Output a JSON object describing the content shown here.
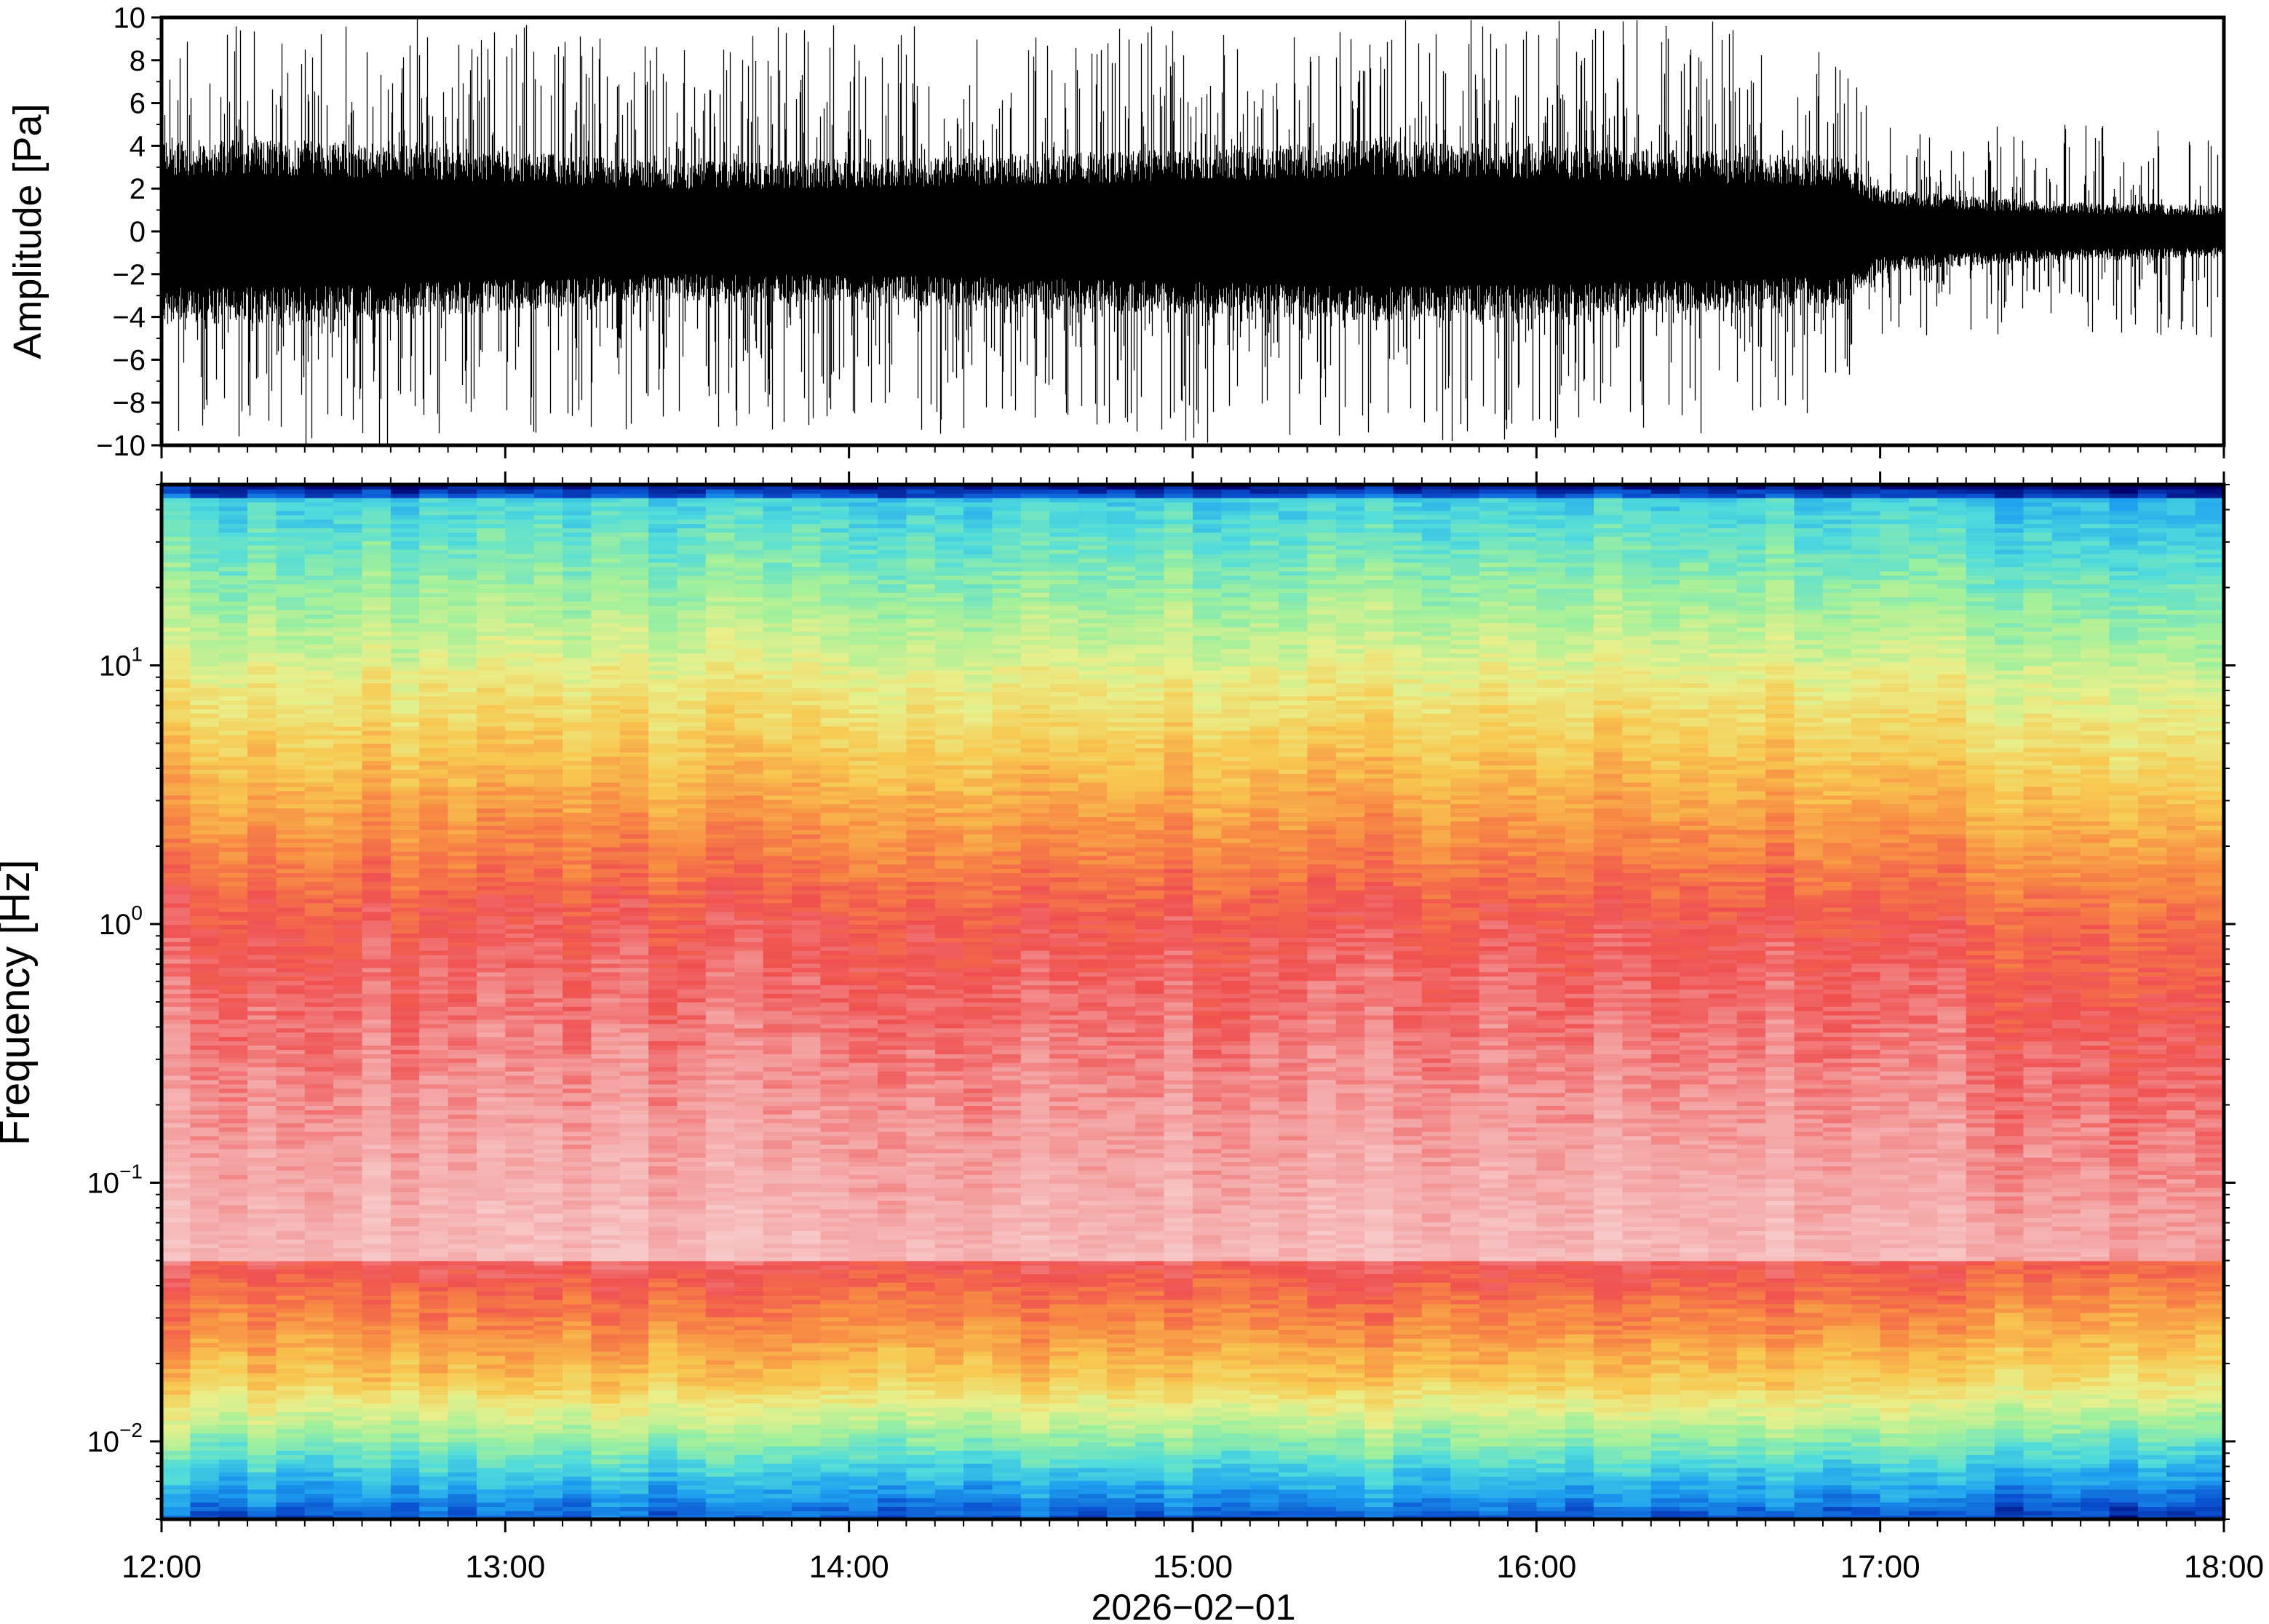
{
  "chart_data": [
    {
      "type": "line",
      "ylabel": "Amplitude [Pa]",
      "ylim": [
        -10,
        10
      ],
      "yticks": [
        -10,
        -8,
        -6,
        -4,
        -2,
        0,
        2,
        4,
        6,
        8,
        10
      ],
      "ytick_labels": [
        "−10",
        "−8",
        "−6",
        "−4",
        "−2",
        "0",
        "2",
        "4",
        "6",
        "8",
        "10"
      ],
      "x_range_hours": [
        12,
        18
      ],
      "envelope": {
        "times": [
          12.0,
          12.5,
          13.0,
          13.5,
          14.0,
          14.5,
          15.0,
          15.5,
          16.0,
          16.5,
          16.9,
          17.0,
          17.5,
          18.0
        ],
        "dense_half_amplitude": [
          3.5,
          3.4,
          3.0,
          2.6,
          2.7,
          2.9,
          3.1,
          3.4,
          3.3,
          3.0,
          2.8,
          1.6,
          1.1,
          1.0
        ],
        "spike_peak": [
          10,
          10,
          10,
          9,
          10,
          9,
          10,
          10,
          10,
          10,
          8,
          5,
          5,
          5
        ]
      },
      "grid": false
    },
    {
      "type": "heatmap",
      "ylabel": "Frequency [Hz]",
      "y_scale": "log",
      "ylim": [
        0.005,
        50
      ],
      "yticks": [
        0.01,
        0.1,
        1,
        10
      ],
      "ytick_labels": [
        {
          "base": "10",
          "exp": "−2"
        },
        {
          "base": "10",
          "exp": "−1"
        },
        {
          "base": "10",
          "exp": "0"
        },
        {
          "base": "10",
          "exp": "1"
        }
      ],
      "colormap": [
        "#00006e",
        "#0a50d0",
        "#1ea0f0",
        "#50dcdc",
        "#a0f09c",
        "#e8f08c",
        "#f8c850",
        "#f88c44",
        "#f05050",
        "#f4a0a0",
        "#f8c8c8"
      ],
      "time_bins": 72,
      "grid": false
    }
  ],
  "xaxis": {
    "labels": [
      "12:00",
      "13:00",
      "14:00",
      "15:00",
      "16:00",
      "17:00",
      "18:00"
    ],
    "date_label": "2026−02−01"
  }
}
